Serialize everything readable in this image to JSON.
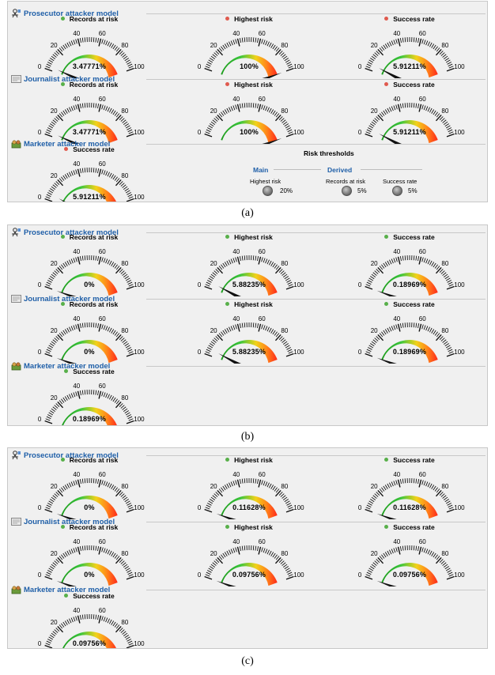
{
  "panels": [
    {
      "caption": "(a)",
      "sections": [
        {
          "title": "Prosecutor attacker model",
          "icon": "prosecutor-icon",
          "gauges": [
            {
              "label": "Records at risk",
              "dot": "green",
              "display": "3.47771%",
              "value": 3.47771
            },
            {
              "label": "Highest risk",
              "dot": "red",
              "display": "100%",
              "value": 100
            },
            {
              "label": "Success rate",
              "dot": "red",
              "display": "5.91211%",
              "value": 5.91211
            }
          ]
        },
        {
          "title": "Journalist attacker model",
          "icon": "journalist-icon",
          "gauges": [
            {
              "label": "Records at risk",
              "dot": "green",
              "display": "3.47771%",
              "value": 3.47771
            },
            {
              "label": "Highest risk",
              "dot": "red",
              "display": "100%",
              "value": 100
            },
            {
              "label": "Success rate",
              "dot": "red",
              "display": "5.91211%",
              "value": 5.91211
            }
          ]
        },
        {
          "title": "Marketer attacker model",
          "icon": "marketer-icon",
          "gauges": [
            {
              "label": "Success rate",
              "dot": "red",
              "display": "5.91211%",
              "value": 5.91211
            }
          ]
        }
      ],
      "thresholds": {
        "title": "Risk thresholds",
        "main_label": "Main",
        "derived_label": "Derived",
        "highest_risk_label": "Highest risk",
        "highest_risk_value": "20%",
        "records_label": "Records at risk",
        "records_value": "5%",
        "success_label": "Success rate",
        "success_value": "5%"
      }
    },
    {
      "caption": "(b)",
      "sections": [
        {
          "title": "Prosecutor attacker model",
          "icon": "prosecutor-icon",
          "gauges": [
            {
              "label": "Records at risk",
              "dot": "green",
              "display": "0%",
              "value": 0
            },
            {
              "label": "Highest risk",
              "dot": "green",
              "display": "5.88235%",
              "value": 5.88235
            },
            {
              "label": "Success rate",
              "dot": "green",
              "display": "0.18969%",
              "value": 0.18969
            }
          ]
        },
        {
          "title": "Journalist attacker model",
          "icon": "journalist-icon",
          "gauges": [
            {
              "label": "Records at risk",
              "dot": "green",
              "display": "0%",
              "value": 0
            },
            {
              "label": "Highest risk",
              "dot": "green",
              "display": "5.88235%",
              "value": 5.88235
            },
            {
              "label": "Success rate",
              "dot": "green",
              "display": "0.18969%",
              "value": 0.18969
            }
          ]
        },
        {
          "title": "Marketer attacker model",
          "icon": "marketer-icon",
          "gauges": [
            {
              "label": "Success rate",
              "dot": "green",
              "display": "0.18969%",
              "value": 0.18969
            }
          ]
        }
      ]
    },
    {
      "caption": "(c)",
      "sections": [
        {
          "title": "Prosecutor attacker model",
          "icon": "prosecutor-icon",
          "gauges": [
            {
              "label": "Records at risk",
              "dot": "green",
              "display": "0%",
              "value": 0
            },
            {
              "label": "Highest risk",
              "dot": "green",
              "display": "0.11628%",
              "value": 0.11628
            },
            {
              "label": "Success rate",
              "dot": "green",
              "display": "0.11628%",
              "value": 0.11628
            }
          ]
        },
        {
          "title": "Journalist attacker model",
          "icon": "journalist-icon",
          "gauges": [
            {
              "label": "Records at risk",
              "dot": "green",
              "display": "0%",
              "value": 0
            },
            {
              "label": "Highest risk",
              "dot": "green",
              "display": "0.09756%",
              "value": 0.09756
            },
            {
              "label": "Success rate",
              "dot": "green",
              "display": "0.09756%",
              "value": 0.09756
            }
          ]
        },
        {
          "title": "Marketer attacker model",
          "icon": "marketer-icon",
          "gauges": [
            {
              "label": "Success rate",
              "dot": "green",
              "display": "0.09756%",
              "value": 0.09756
            }
          ]
        }
      ]
    }
  ],
  "gauge_scale": {
    "min": 0,
    "max": 100,
    "tick_labels": [
      "0",
      "20",
      "40",
      "60",
      "80",
      "100"
    ]
  },
  "colors": {
    "header_blue": "#1f5fa8",
    "gauge_green": "#3cc63c",
    "gauge_red": "#ff2a1a",
    "needle": "#111111"
  }
}
